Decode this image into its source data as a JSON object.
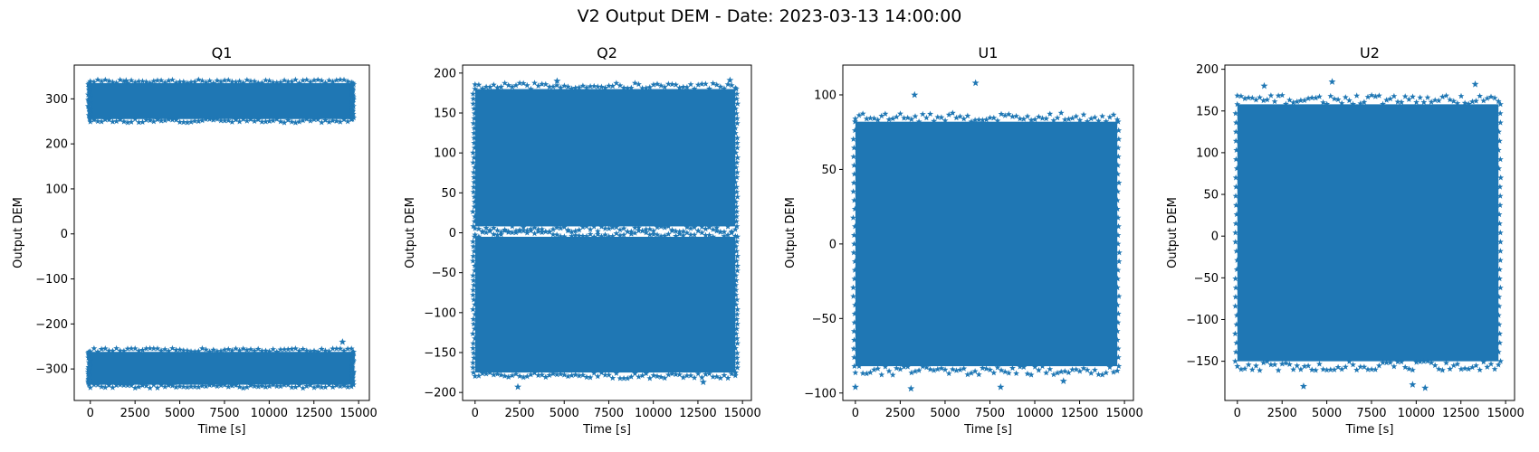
{
  "suptitle": "V2 Output DEM - Date: 2023-03-13 14:00:00",
  "colors": {
    "series": "#1f77b4",
    "axis": "#000000",
    "background": "#ffffff"
  },
  "chart_data": [
    {
      "type": "scatter",
      "title": "Q1",
      "xlabel": "Time [s]",
      "ylabel": "Output DEM",
      "marker": "star",
      "xlim": [
        -900,
        15600
      ],
      "ylim": [
        -370,
        375
      ],
      "xticks": [
        0,
        2500,
        5000,
        7500,
        10000,
        12500,
        15000
      ],
      "yticks": [
        -300,
        -200,
        -100,
        0,
        100,
        200,
        300
      ],
      "grid": false,
      "x_range": [
        0,
        14600
      ],
      "bands": [
        {
          "low": -335,
          "high": -262
        },
        {
          "low": 255,
          "high": 335
        }
      ],
      "outliers": [
        {
          "x": 2000,
          "y": 340
        },
        {
          "x": 14100,
          "y": -240
        }
      ]
    },
    {
      "type": "scatter",
      "title": "Q2",
      "xlabel": "Time [s]",
      "ylabel": "Output DEM",
      "marker": "star",
      "xlim": [
        -700,
        15500
      ],
      "ylim": [
        -210,
        210
      ],
      "xticks": [
        0,
        2500,
        5000,
        7500,
        10000,
        12500,
        15000
      ],
      "yticks": [
        -200,
        -150,
        -100,
        -50,
        0,
        50,
        100,
        150,
        200
      ],
      "grid": false,
      "x_range": [
        0,
        14600
      ],
      "bands": [
        {
          "low": -175,
          "high": -5
        },
        {
          "low": 8,
          "high": 180
        }
      ],
      "outliers": [
        {
          "x": 2400,
          "y": -193
        },
        {
          "x": 4600,
          "y": 190
        },
        {
          "x": 14300,
          "y": 191
        },
        {
          "x": 12800,
          "y": -187
        }
      ]
    },
    {
      "type": "scatter",
      "title": "U1",
      "xlabel": "Time [s]",
      "ylabel": "Output DEM",
      "marker": "star",
      "xlim": [
        -700,
        15500
      ],
      "ylim": [
        -105,
        120
      ],
      "xticks": [
        0,
        2500,
        5000,
        7500,
        10000,
        12500,
        15000
      ],
      "yticks": [
        -100,
        -50,
        0,
        50,
        100
      ],
      "grid": false,
      "x_range": [
        0,
        14600
      ],
      "bands": [
        {
          "low": -82,
          "high": 82
        }
      ],
      "outliers": [
        {
          "x": 6700,
          "y": 108
        },
        {
          "x": 3300,
          "y": 100
        },
        {
          "x": 0,
          "y": -96
        },
        {
          "x": 3100,
          "y": -97
        },
        {
          "x": 8100,
          "y": -96
        },
        {
          "x": 11600,
          "y": -92
        }
      ]
    },
    {
      "type": "scatter",
      "title": "U2",
      "xlabel": "Time [s]",
      "ylabel": "Output DEM",
      "marker": "star",
      "xlim": [
        -700,
        15500
      ],
      "ylim": [
        -197,
        205
      ],
      "xticks": [
        0,
        2500,
        5000,
        7500,
        10000,
        12500,
        15000
      ],
      "yticks": [
        -150,
        -100,
        -50,
        0,
        50,
        100,
        150,
        200
      ],
      "grid": false,
      "x_range": [
        0,
        14600
      ],
      "bands": [
        {
          "low": -150,
          "high": 158
        }
      ],
      "outliers": [
        {
          "x": 5300,
          "y": 185
        },
        {
          "x": 13300,
          "y": 182
        },
        {
          "x": 1500,
          "y": 180
        },
        {
          "x": 3700,
          "y": -180
        },
        {
          "x": 9800,
          "y": -178
        },
        {
          "x": 10500,
          "y": -182
        }
      ]
    }
  ]
}
